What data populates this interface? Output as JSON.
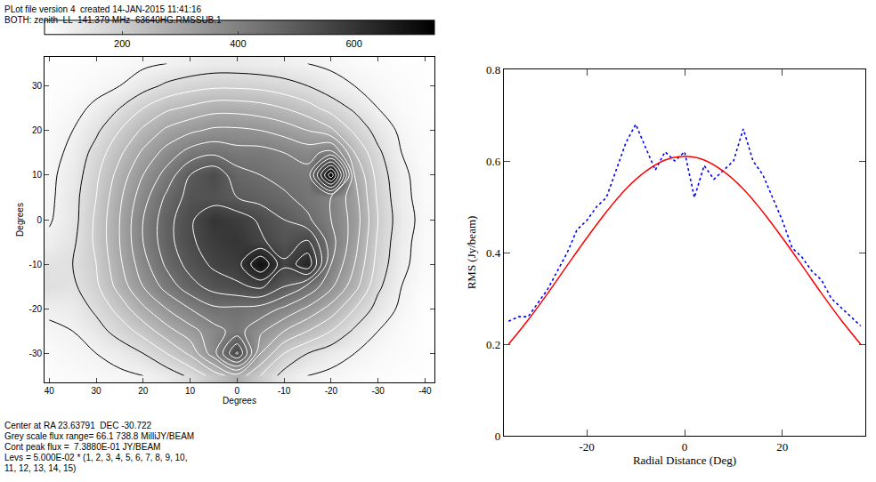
{
  "chart_data": [
    {
      "type": "contour",
      "header": [
        "PLot file version 4  created 14-JAN-2015 11:41:16",
        "BOTH: zenith  LL  141.379 MHz  63640HG.RMSSUB.1"
      ],
      "footer": [
        "Center at RA 23.63791  DEC -30.722",
        "Grey scale flux range= 66.1 738.8 MilliJY/BEAM",
        "Cont peak flux =  7.3880E-01 JY/BEAM",
        "Levs = 5.000E-02 * (1, 2, 3, 4, 5, 6, 7, 8, 9, 10,",
        "11, 12, 13, 14, 15)"
      ],
      "xlabel": "Degrees",
      "ylabel": "Degrees",
      "xlim": [
        41,
        -42
      ],
      "ylim": [
        -36.5,
        36.5
      ],
      "xticks": [
        40,
        30,
        20,
        10,
        0,
        -10,
        -20,
        -30,
        -40
      ],
      "yticks": [
        -30,
        -20,
        -10,
        0,
        10,
        20,
        30
      ],
      "x": [
        40,
        35,
        30,
        25,
        20,
        15,
        10,
        5,
        0,
        -5,
        -10,
        -15,
        -20,
        -25,
        -30,
        -35,
        -40
      ],
      "y": [
        -35,
        -30,
        -25,
        -20,
        -15,
        -10,
        -5,
        0,
        5,
        10,
        15,
        20,
        25,
        30,
        35
      ],
      "cells": [
        [
          75,
          80,
          85,
          90,
          100,
          120,
          160,
          220,
          280,
          200,
          130,
          100,
          90,
          80,
          75,
          70,
          70
        ],
        [
          80,
          90,
          100,
          120,
          150,
          200,
          260,
          380,
          560,
          300,
          200,
          150,
          120,
          100,
          85,
          75,
          70
        ],
        [
          90,
          100,
          130,
          170,
          220,
          280,
          330,
          380,
          420,
          360,
          300,
          250,
          200,
          140,
          100,
          80,
          70
        ],
        [
          110,
          120,
          160,
          220,
          290,
          350,
          400,
          440,
          440,
          430,
          390,
          340,
          280,
          200,
          130,
          90,
          70
        ],
        [
          150,
          140,
          190,
          270,
          350,
          420,
          480,
          520,
          540,
          560,
          500,
          440,
          360,
          270,
          160,
          100,
          75
        ],
        [
          140,
          150,
          200,
          290,
          380,
          460,
          520,
          560,
          580,
          700,
          560,
          640,
          400,
          300,
          180,
          110,
          80
        ],
        [
          110,
          140,
          210,
          300,
          400,
          480,
          540,
          580,
          600,
          560,
          520,
          560,
          420,
          320,
          190,
          115,
          80
        ],
        [
          95,
          130,
          210,
          300,
          400,
          480,
          540,
          600,
          580,
          540,
          500,
          460,
          400,
          330,
          200,
          120,
          85
        ],
        [
          90,
          130,
          200,
          290,
          380,
          460,
          520,
          520,
          500,
          480,
          460,
          430,
          400,
          320,
          190,
          115,
          80
        ],
        [
          90,
          120,
          190,
          270,
          350,
          420,
          500,
          540,
          470,
          450,
          430,
          420,
          738.8,
          300,
          180,
          110,
          80
        ],
        [
          85,
          110,
          170,
          240,
          310,
          370,
          420,
          440,
          420,
          420,
          400,
          380,
          420,
          250,
          160,
          100,
          75
        ],
        [
          80,
          100,
          140,
          200,
          260,
          310,
          340,
          360,
          360,
          350,
          330,
          300,
          260,
          190,
          130,
          90,
          75
        ],
        [
          75,
          85,
          110,
          150,
          200,
          240,
          260,
          280,
          280,
          270,
          250,
          220,
          180,
          140,
          100,
          80,
          70
        ],
        [
          70,
          75,
          85,
          100,
          130,
          160,
          180,
          190,
          190,
          185,
          170,
          150,
          120,
          100,
          85,
          75,
          70
        ],
        [
          70,
          70,
          75,
          80,
          90,
          100,
          110,
          120,
          120,
          115,
          110,
          100,
          90,
          80,
          75,
          70,
          70
        ]
      ],
      "colorbar": {
        "range": [
          66.1,
          738.8
        ],
        "ticks": [
          200,
          400,
          600
        ],
        "colors": [
          "#ffffff",
          "#000000"
        ]
      },
      "contour_levels": [
        50,
        100,
        150,
        200,
        250,
        300,
        350,
        400,
        450,
        500,
        550,
        600,
        650,
        700,
        750
      ]
    },
    {
      "type": "line",
      "xlabel": "Radial Distance (Deg)",
      "ylabel": "RMS (Jy/beam)",
      "xlim": [
        -37,
        37
      ],
      "ylim": [
        0,
        0.8
      ],
      "xticks": [
        -20,
        0,
        20
      ],
      "yticks": [
        0,
        0.2,
        0.4,
        0.6,
        0.8
      ],
      "grid": false,
      "series": [
        {
          "color": "#0000ff",
          "line_style": "dotted",
          "x": [
            -36,
            -34,
            -32,
            -30,
            -28,
            -26,
            -24,
            -22,
            -20,
            -18,
            -16,
            -14,
            -12,
            -10,
            -8,
            -6,
            -4,
            -2,
            0,
            2,
            4,
            6,
            8,
            10,
            12,
            14,
            16,
            18,
            20,
            22,
            24,
            26,
            28,
            30,
            32,
            34,
            36
          ],
          "values": [
            0.25,
            0.26,
            0.26,
            0.29,
            0.32,
            0.36,
            0.4,
            0.45,
            0.47,
            0.5,
            0.52,
            0.58,
            0.64,
            0.68,
            0.63,
            0.58,
            0.62,
            0.6,
            0.62,
            0.52,
            0.59,
            0.56,
            0.58,
            0.6,
            0.67,
            0.6,
            0.57,
            0.52,
            0.47,
            0.41,
            0.39,
            0.36,
            0.34,
            0.3,
            0.28,
            0.26,
            0.24
          ]
        },
        {
          "color": "#ff0000",
          "line_style": "solid",
          "x": [
            -36,
            -32,
            -28,
            -24,
            -20,
            -16,
            -12,
            -8,
            -4,
            0,
            4,
            8,
            12,
            16,
            20,
            24,
            28,
            32,
            36
          ],
          "values": [
            0.2,
            0.253,
            0.311,
            0.372,
            0.432,
            0.489,
            0.539,
            0.577,
            0.602,
            0.61,
            0.602,
            0.577,
            0.539,
            0.489,
            0.432,
            0.372,
            0.311,
            0.253,
            0.2
          ]
        }
      ]
    }
  ]
}
